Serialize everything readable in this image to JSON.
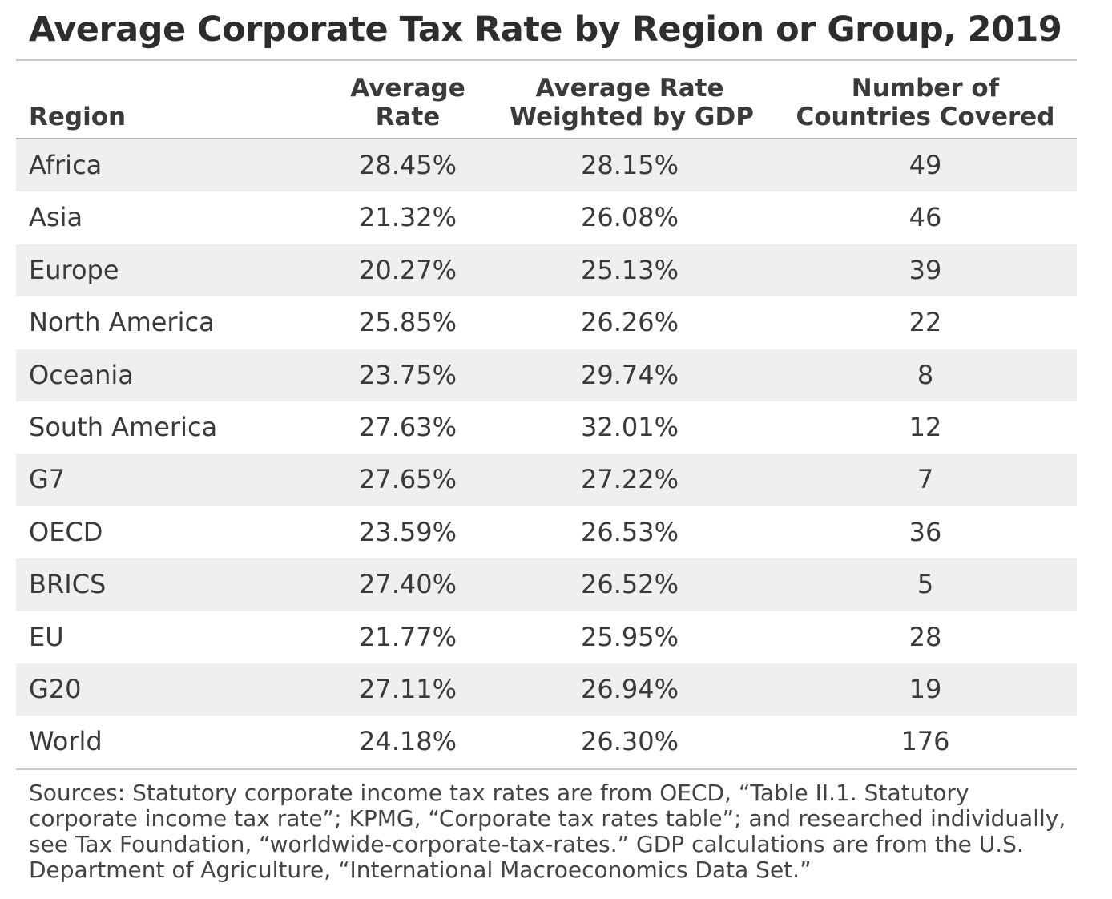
{
  "title": "Average Corporate Tax Rate by Region or Group, 2019",
  "headers": {
    "region": "Region",
    "avg_rate_line1": "Average",
    "avg_rate_line2": "Rate",
    "weighted_line1": "Average Rate",
    "weighted_line2": "Weighted by GDP",
    "countries_line1": "Number of",
    "countries_line2": "Countries Covered"
  },
  "rows": [
    {
      "region": "Africa",
      "average_rate": "28.45%",
      "weighted_rate": "28.15%",
      "countries": "49"
    },
    {
      "region": "Asia",
      "average_rate": "21.32%",
      "weighted_rate": "26.08%",
      "countries": "46"
    },
    {
      "region": "Europe",
      "average_rate": "20.27%",
      "weighted_rate": "25.13%",
      "countries": "39"
    },
    {
      "region": "North America",
      "average_rate": "25.85%",
      "weighted_rate": "26.26%",
      "countries": "22"
    },
    {
      "region": "Oceania",
      "average_rate": "23.75%",
      "weighted_rate": "29.74%",
      "countries": "8"
    },
    {
      "region": "South America",
      "average_rate": "27.63%",
      "weighted_rate": "32.01%",
      "countries": "12"
    },
    {
      "region": "G7",
      "average_rate": "27.65%",
      "weighted_rate": "27.22%",
      "countries": "7"
    },
    {
      "region": "OECD",
      "average_rate": "23.59%",
      "weighted_rate": "26.53%",
      "countries": "36"
    },
    {
      "region": "BRICS",
      "average_rate": "27.40%",
      "weighted_rate": "26.52%",
      "countries": "5"
    },
    {
      "region": "EU",
      "average_rate": "21.77%",
      "weighted_rate": "25.95%",
      "countries": "28"
    },
    {
      "region": "G20",
      "average_rate": "27.11%",
      "weighted_rate": "26.94%",
      "countries": "19"
    },
    {
      "region": "World",
      "average_rate": "24.18%",
      "weighted_rate": "26.30%",
      "countries": "176"
    }
  ],
  "sources": "Sources: Statutory corporate income tax rates are from OECD, “Table II.1. Statutory corporate income tax rate”; KPMG, “Corporate tax rates table”; and researched individually, see Tax Foundation, “worldwide-corporate-tax-rates.” GDP calculations are from the U.S. Department of Agriculture, “International Macroeconomics Data Set.”",
  "colors": {
    "shaded_row": "#efefef",
    "text": "#3a3a3a",
    "rule": "#c8c8c8"
  }
}
